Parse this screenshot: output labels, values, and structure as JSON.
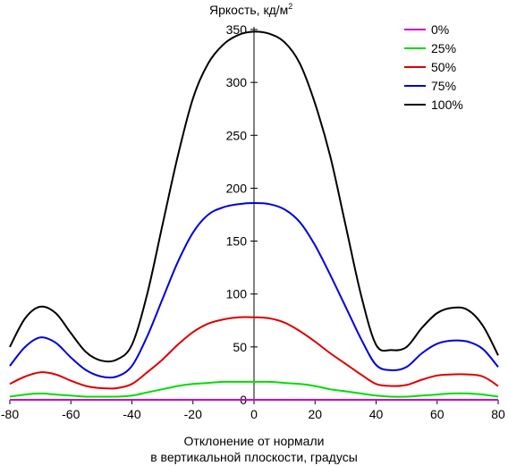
{
  "chart_data": {
    "type": "line",
    "ylabel": "Яркость, кд/м",
    "ylabel_sup": "2",
    "xlabel_line1": "Отклонение от нормали",
    "xlabel_line2": "в вертикальной плоскости, градусы",
    "xlim": [
      -80,
      80
    ],
    "ylim": [
      0,
      350
    ],
    "xticks": [
      -80,
      -60,
      -40,
      -20,
      0,
      20,
      40,
      60,
      80
    ],
    "yticks": [
      0,
      50,
      100,
      150,
      200,
      250,
      300,
      350
    ],
    "grid": false,
    "legend_position": "top-right",
    "x": [
      -80,
      -75,
      -70,
      -65,
      -60,
      -55,
      -50,
      -45,
      -40,
      -35,
      -30,
      -25,
      -20,
      -15,
      -10,
      -5,
      0,
      5,
      10,
      15,
      20,
      25,
      30,
      35,
      40,
      45,
      50,
      55,
      60,
      65,
      70,
      75,
      80
    ],
    "series": [
      {
        "name": "0%",
        "color": "#cc00cc",
        "values": [
          0,
          0,
          0,
          0,
          0,
          0,
          0,
          0,
          0,
          0,
          0,
          0,
          0,
          0,
          0,
          0,
          0,
          0,
          0,
          0,
          0,
          0,
          0,
          0,
          0,
          0,
          0,
          0,
          0,
          0,
          0,
          0,
          0
        ]
      },
      {
        "name": "25%",
        "color": "#00dd00",
        "values": [
          3,
          5,
          6,
          5,
          4,
          3,
          3,
          3,
          4,
          7,
          10,
          13,
          15,
          16,
          17,
          17,
          17,
          17,
          16,
          15,
          13,
          10,
          8,
          6,
          4,
          3,
          3,
          4,
          5,
          6,
          6,
          5,
          3
        ]
      },
      {
        "name": "50%",
        "color": "#dd0000",
        "values": [
          15,
          22,
          26,
          24,
          18,
          13,
          11,
          11,
          15,
          26,
          38,
          52,
          64,
          72,
          76,
          78,
          78,
          77,
          73,
          65,
          55,
          44,
          34,
          24,
          15,
          13,
          14,
          19,
          23,
          24,
          24,
          22,
          13
        ]
      },
      {
        "name": "75%",
        "color": "#0000dd",
        "values": [
          32,
          50,
          59,
          54,
          40,
          28,
          22,
          22,
          32,
          60,
          95,
          130,
          158,
          175,
          182,
          185,
          186,
          185,
          180,
          168,
          146,
          118,
          88,
          58,
          33,
          28,
          31,
          44,
          53,
          56,
          55,
          48,
          31
        ]
      },
      {
        "name": "100%",
        "color": "#000000",
        "values": [
          50,
          77,
          88,
          82,
          63,
          45,
          37,
          38,
          52,
          100,
          165,
          230,
          285,
          318,
          336,
          345,
          348,
          346,
          338,
          318,
          280,
          230,
          165,
          100,
          52,
          47,
          50,
          68,
          82,
          87,
          85,
          70,
          42
        ]
      }
    ]
  }
}
